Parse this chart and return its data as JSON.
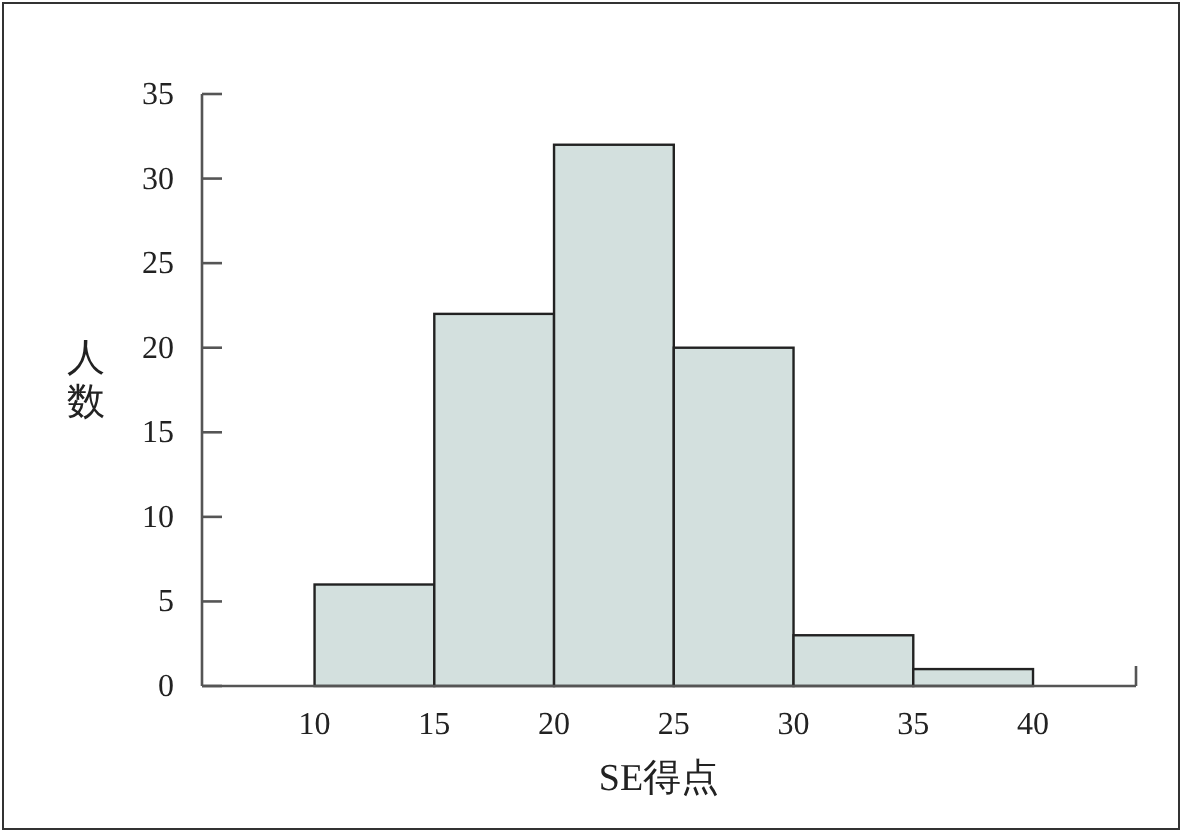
{
  "chart_data": {
    "type": "histogram",
    "xlabel": "SE得点",
    "ylabel": "人数",
    "bins": [
      10,
      15,
      20,
      25,
      30,
      35,
      40
    ],
    "values": [
      6,
      22,
      32,
      20,
      3,
      1
    ],
    "color": "#d3e0de",
    "xlim": [
      5.3,
      44.3
    ],
    "xticks": [
      10,
      15,
      20,
      25,
      30,
      35,
      40
    ],
    "ylim": [
      0,
      35
    ],
    "yticks": [
      0,
      5,
      10,
      15,
      20,
      25,
      30,
      35
    ],
    "grid": false
  }
}
